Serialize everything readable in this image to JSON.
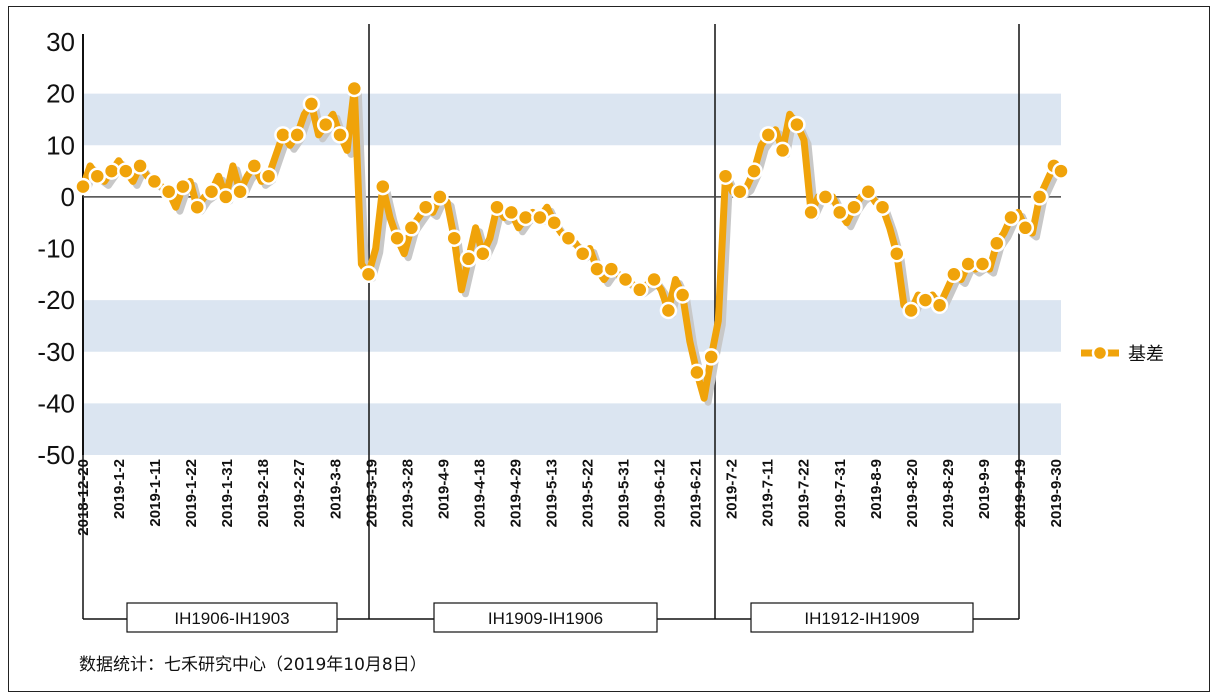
{
  "chart_data": {
    "type": "line",
    "ylim": [
      -50,
      30
    ],
    "y_ticks": [
      30,
      20,
      10,
      0,
      -10,
      -20,
      -30,
      -40,
      -50
    ],
    "x_tick_labels": [
      "2018-12-20",
      "2019-1-2",
      "2019-1-11",
      "2019-1-22",
      "2019-1-31",
      "2019-2-18",
      "2019-2-27",
      "2019-3-8",
      "2019-3-19",
      "2019-3-28",
      "2019-4-9",
      "2019-4-18",
      "2019-4-29",
      "2019-5-13",
      "2019-5-22",
      "2019-5-31",
      "2019-6-12",
      "2019-6-21",
      "2019-7-2",
      "2019-7-11",
      "2019-7-22",
      "2019-7-31",
      "2019-8-9",
      "2019-8-20",
      "2019-8-29",
      "2019-9-9",
      "2019-9-19",
      "2019-9-30"
    ],
    "legend": {
      "label": "基差",
      "position": "right"
    },
    "series": [
      {
        "name": "基差",
        "color": "#f0a30a",
        "values": [
          2,
          6,
          4,
          3,
          5,
          7,
          5,
          3,
          6,
          4,
          3,
          2,
          1,
          -2,
          2,
          3,
          -2,
          0,
          1,
          4,
          0,
          6,
          1,
          4,
          6,
          3,
          4,
          8,
          12,
          10,
          12,
          16,
          18,
          12,
          14,
          16,
          12,
          9,
          21,
          -13,
          -15,
          -10,
          2,
          -4,
          -8,
          -11,
          -6,
          -4,
          -2,
          -3,
          0,
          -1,
          -8,
          -18,
          -12,
          -6,
          -11,
          -8,
          -2,
          -4,
          -3,
          -6,
          -4,
          -3,
          -4,
          -2,
          -5,
          -7,
          -8,
          -9,
          -11,
          -10,
          -14,
          -16,
          -14,
          -15,
          -16,
          -17,
          -18,
          -17,
          -16,
          -18,
          -22,
          -16,
          -19,
          -28,
          -34,
          -39,
          -31,
          -24,
          4,
          1,
          1,
          2,
          5,
          10,
          12,
          13,
          9,
          16,
          14,
          11,
          -3,
          0,
          0,
          0,
          -3,
          -5,
          -2,
          0,
          1,
          -1,
          -2,
          -6,
          -11,
          -21,
          -22,
          -19,
          -20,
          -19,
          -21,
          -18,
          -15,
          -16,
          -13,
          -14,
          -13,
          -14,
          -9,
          -7,
          -4,
          -3,
          -6,
          -7,
          0,
          3,
          6,
          5
        ]
      }
    ],
    "contract_segments": [
      {
        "label": "IH1906-IH1903"
      },
      {
        "label": "IH1909-IH1906"
      },
      {
        "label": "IH1912-IH1909"
      }
    ]
  },
  "footer": {
    "source": "数据统计：七禾研究中心（2019年10月8日）"
  }
}
